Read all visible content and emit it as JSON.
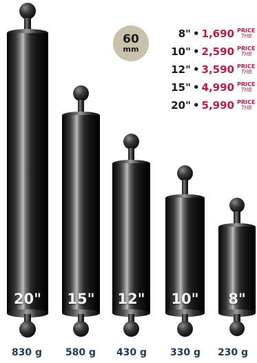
{
  "badge": {
    "value": "60",
    "unit": "mm"
  },
  "prices": [
    {
      "size": "8\"",
      "amount": "1,690",
      "price_label": "PRICE",
      "currency": "THB"
    },
    {
      "size": "10\"",
      "amount": "2,590",
      "price_label": "PRICE",
      "currency": "THB"
    },
    {
      "size": "12\"",
      "amount": "3,590",
      "price_label": "PRICE",
      "currency": "THB"
    },
    {
      "size": "15\"",
      "amount": "4,990",
      "price_label": "PRICE",
      "currency": "THB"
    },
    {
      "size": "20\"",
      "amount": "5,990",
      "price_label": "PRICE",
      "currency": "THB"
    }
  ],
  "separator": "•",
  "floats": [
    {
      "label": "20\"",
      "weight": "830 g"
    },
    {
      "label": "15\"",
      "weight": "580 g"
    },
    {
      "label": "12\"",
      "weight": "430 g"
    },
    {
      "label": "10\"",
      "weight": "330 g"
    },
    {
      "label": "8\"",
      "weight": "230 g"
    }
  ],
  "colors": {
    "price_red": "#b3213f",
    "weight_blue": "#1f3a5a",
    "badge_beige": "#c9c1ac",
    "tube_black": "#0a0a0a"
  }
}
